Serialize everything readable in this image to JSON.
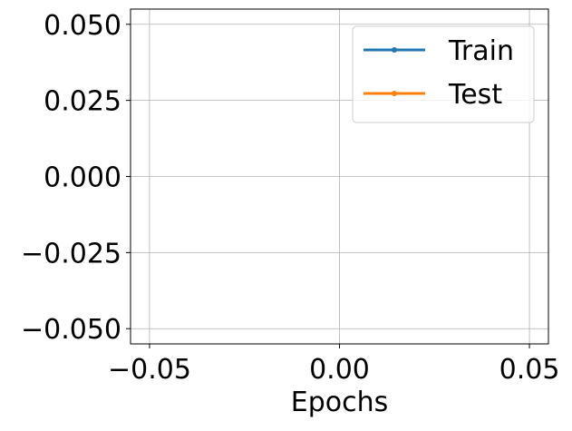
{
  "chart_data": {
    "type": "line",
    "title": "",
    "xlabel": "Epochs",
    "ylabel": "",
    "xlim": [
      -0.055,
      0.055
    ],
    "ylim": [
      -0.055,
      0.055
    ],
    "xticks": [
      -0.05,
      0.0,
      0.05
    ],
    "xtick_labels": [
      "−0.05",
      "0.00",
      "0.05"
    ],
    "yticks": [
      0.05,
      0.025,
      0.0,
      -0.025,
      -0.05
    ],
    "ytick_labels": [
      "0.050",
      "0.025",
      "0.000",
      "−0.025",
      "−0.050"
    ],
    "grid": true,
    "legend_position": "top-right",
    "series": [
      {
        "name": "Train",
        "color": "#1f77b4",
        "marker": "dot",
        "x": [],
        "y": []
      },
      {
        "name": "Test",
        "color": "#ff7f0e",
        "marker": "dot",
        "x": [],
        "y": []
      }
    ]
  }
}
